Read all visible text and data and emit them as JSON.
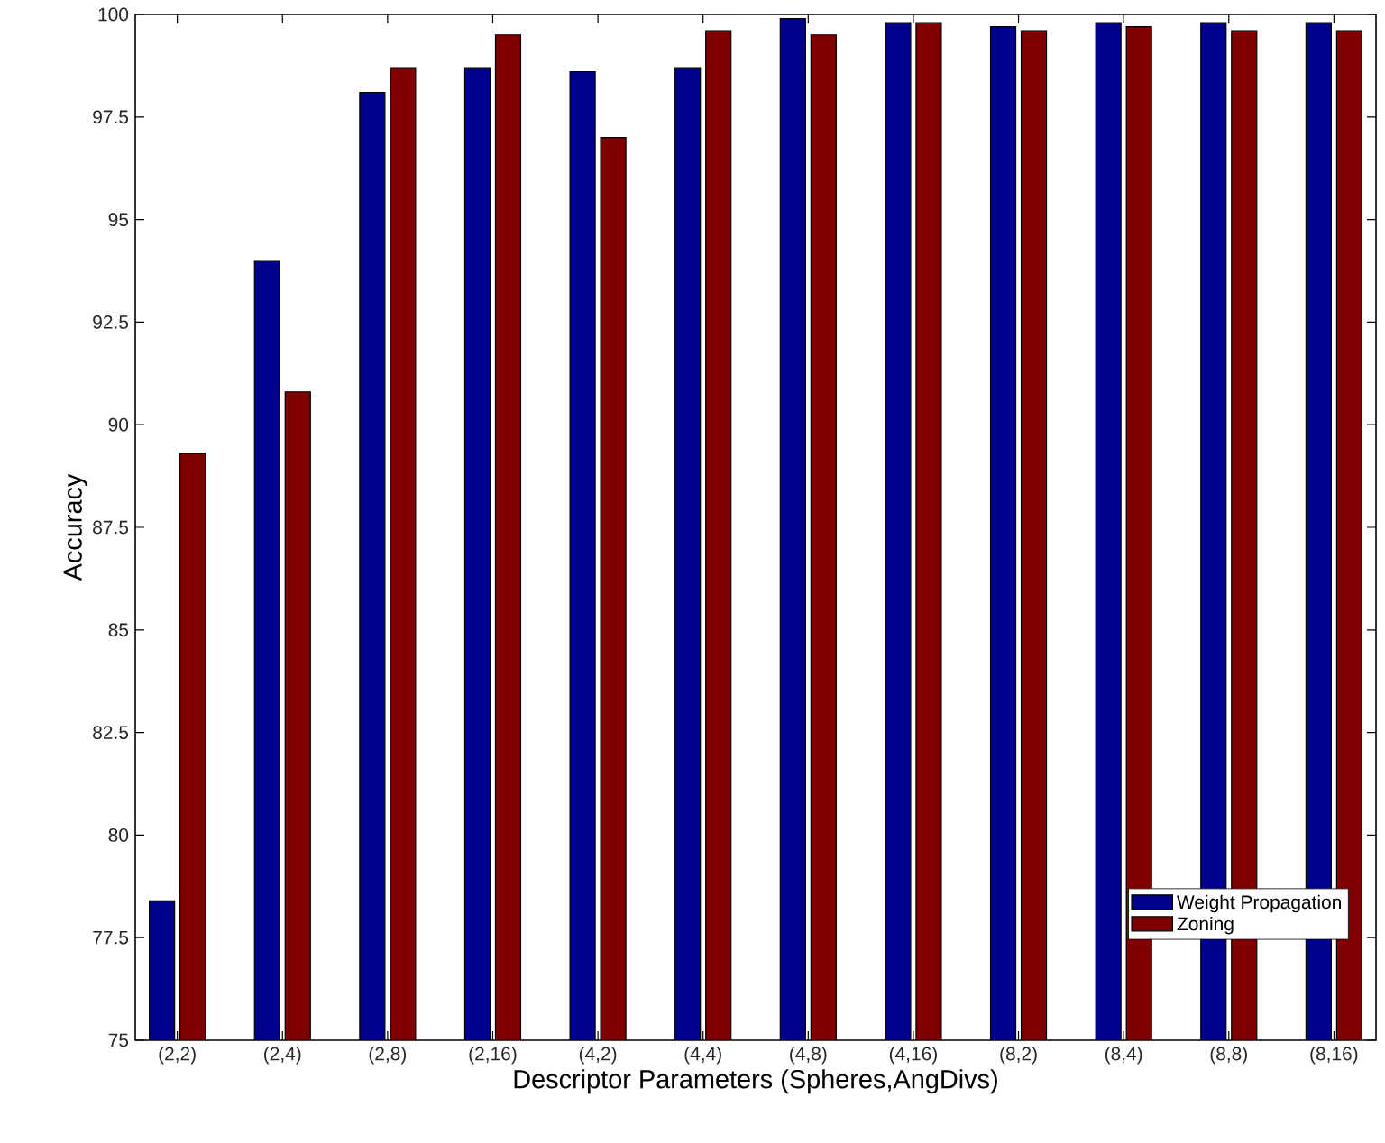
{
  "chart_data": {
    "type": "bar",
    "xlabel": "Descriptor Parameters (Spheres,AngDivs)",
    "ylabel": "Accuracy",
    "categories": [
      "(2,2)",
      "(2,4)",
      "(2,8)",
      "(2,16)",
      "(4,2)",
      "(4,4)",
      "(4,8)",
      "(4,16)",
      "(8,2)",
      "(8,4)",
      "(8,8)",
      "(8,16)"
    ],
    "series": [
      {
        "name": "Weight Propagation",
        "color": "#00008f",
        "values": [
          78.4,
          94.0,
          98.1,
          98.7,
          98.6,
          98.7,
          99.9,
          99.8,
          99.7,
          99.8,
          99.8,
          99.8
        ]
      },
      {
        "name": "Zoning",
        "color": "#800000",
        "values": [
          89.3,
          90.8,
          98.7,
          99.5,
          97.0,
          99.6,
          99.5,
          99.8,
          99.6,
          99.7,
          99.6,
          99.6
        ]
      }
    ],
    "ylim": [
      75,
      100
    ],
    "yticks": [
      75,
      77.5,
      80,
      82.5,
      85,
      87.5,
      90,
      92.5,
      95,
      97.5,
      100
    ],
    "legend": "bottom right",
    "grid": false
  }
}
